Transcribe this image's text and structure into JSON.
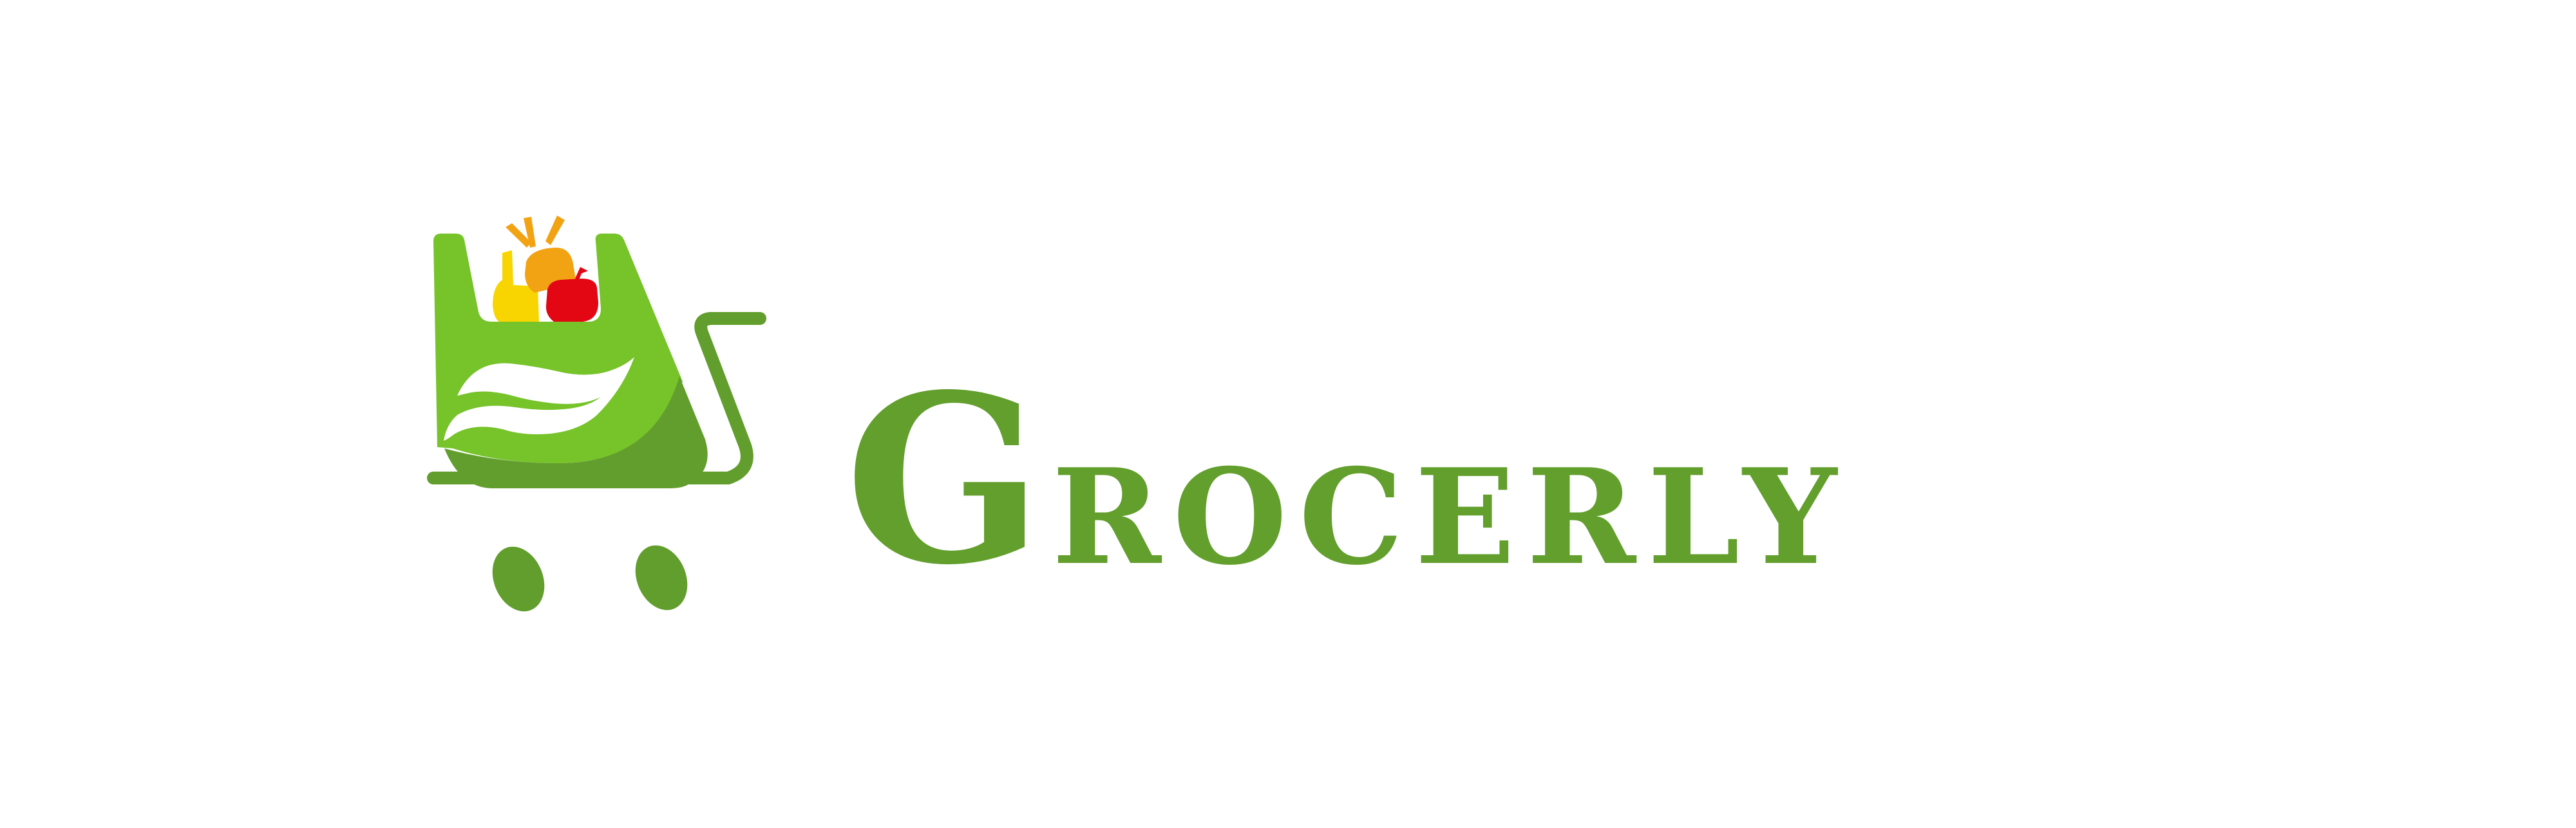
{
  "brand": {
    "name": "Grocerly",
    "initial": "G",
    "rest": "rocerly"
  },
  "colors": {
    "background": "#ffffff",
    "brand_green": "#639f2d",
    "bag_light_green": "#76c32a",
    "bag_dark_green": "#629e2d",
    "fruit_orange": "#f2a313",
    "fruit_yellow": "#f8d500",
    "fruit_red": "#e30613"
  },
  "icons": {
    "logo": "shopping-cart-with-grocery-bag-icon"
  }
}
